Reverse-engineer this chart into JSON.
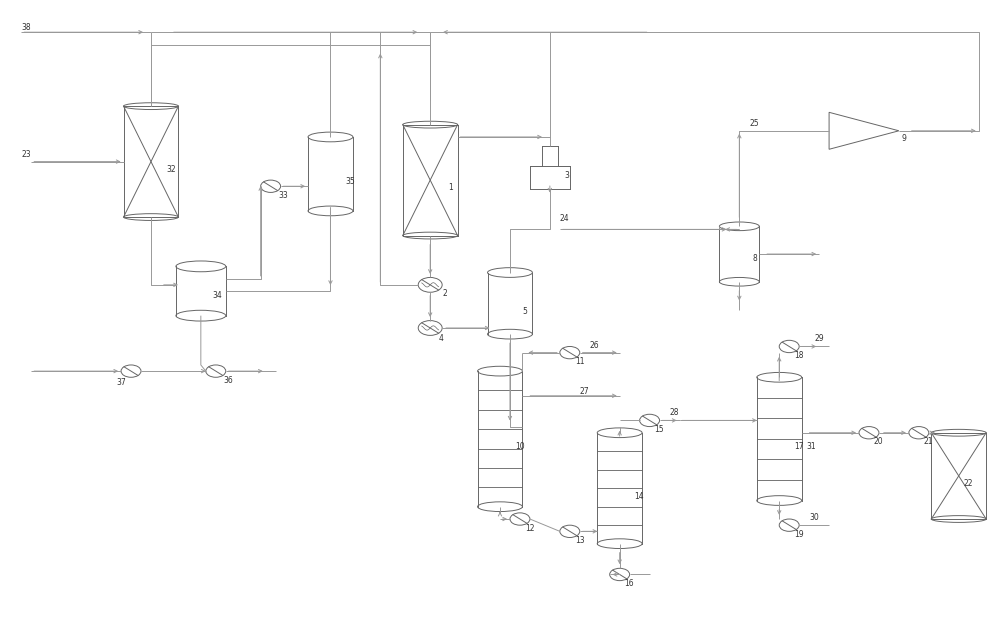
{
  "fig_width": 10.0,
  "fig_height": 6.19,
  "lc": "#999999",
  "ec": "#666666",
  "lw": 0.7,
  "fontsize": 5.5
}
